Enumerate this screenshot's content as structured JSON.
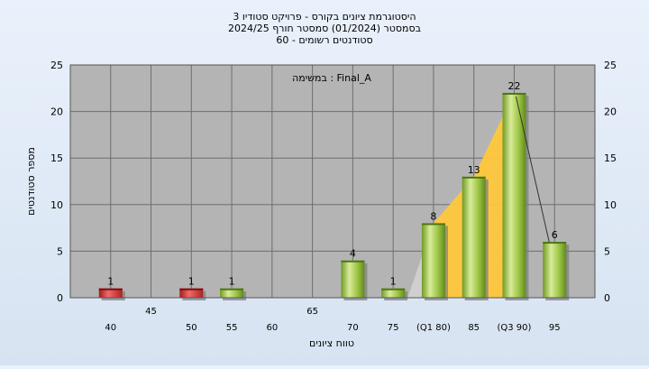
{
  "chart_data": {
    "type": "bar",
    "title_lines": [
      "היסטוגרמת ציונים בקורס - פרויקט סטודיו 3",
      "בסמסטר  (01/2024)  סמסטר חורף 2024/25",
      "סטודנטים רשומים - 60"
    ],
    "annotation": "במשימה : Final_A",
    "ylabel": "מספר סטודנטים",
    "xlabel": "טווח ציונים",
    "ylim": [
      0,
      25
    ],
    "yticks": [
      0,
      5,
      10,
      15,
      20,
      25
    ],
    "xrange": [
      35,
      100
    ],
    "categories": [
      "40",
      "50",
      "55",
      "70",
      "75",
      "80",
      "85",
      "90",
      "95"
    ],
    "x": [
      40,
      50,
      55,
      70,
      75,
      80,
      85,
      90,
      95
    ],
    "values": [
      1,
      1,
      1,
      4,
      1,
      8,
      13,
      22,
      6
    ],
    "bar_colors": [
      "#d42a2a",
      "#d42a2a",
      "#8dbb3a",
      "#8dbb3a",
      "#8dbb3a",
      "#8dbb3a",
      "#8dbb3a",
      "#8dbb3a",
      "#8dbb3a"
    ],
    "x_ticks_row1": [
      "40",
      "50",
      "55",
      "60",
      "70",
      "75",
      "85",
      "95"
    ],
    "x_ticks_row2": [
      "45",
      "60",
      "65",
      "70",
      "75",
      "(Q1 80)",
      "(Q3 90)"
    ],
    "x_ticks_upper": [
      {
        "x": 40,
        "label": "40"
      },
      {
        "x": 50,
        "label": "50"
      },
      {
        "x": 55,
        "label": "55"
      },
      {
        "x": 70,
        "label": "70"
      },
      {
        "x": 75,
        "label": "75"
      },
      {
        "x": 85,
        "label": "85"
      },
      {
        "x": 95,
        "label": "95"
      }
    ],
    "x_ticks_lower": [
      {
        "x": 45,
        "label": "45"
      },
      {
        "x": 60,
        "label": "60"
      },
      {
        "x": 65,
        "label": "65"
      },
      {
        "x": 80,
        "label": "(Q1 80)"
      },
      {
        "x": 90,
        "label": "(Q3 90)"
      }
    ],
    "x_ticks_mid": [
      {
        "x": 60,
        "label": "60"
      },
      {
        "x": 65,
        "label": "65"
      }
    ],
    "iqr_band": {
      "from": 80,
      "to": 90,
      "color": "#ffc83d"
    },
    "grid": true,
    "colors": {
      "plot_bg": "#b4b4b4",
      "grid": "#6e6e6e",
      "red_bar": "#d42a2a",
      "green_bar": "#8dbb3a",
      "band": "#ffc83d",
      "band_left": "#cfcfcf"
    }
  }
}
